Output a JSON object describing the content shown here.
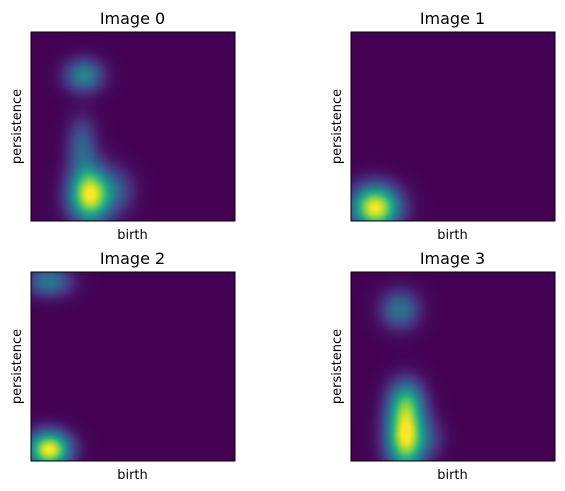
{
  "figure": {
    "colormap": "viridis",
    "background_color": "#440154",
    "peak_color": "#fde725",
    "mid_color": "#21918c"
  },
  "chart_data": [
    {
      "type": "heatmap",
      "title": "Image 0",
      "xlabel": "birth",
      "ylabel": "persistence",
      "xlim": [
        0,
        1
      ],
      "ylim": [
        0,
        1
      ],
      "ticks": "none",
      "grid": false,
      "blobs": [
        {
          "x": 0.29,
          "y": 0.14,
          "sx": 0.07,
          "sy": 0.1,
          "intensity": 1.0
        },
        {
          "x": 0.25,
          "y": 0.4,
          "sx": 0.05,
          "sy": 0.1,
          "intensity": 0.3
        },
        {
          "x": 0.26,
          "y": 0.77,
          "sx": 0.065,
          "sy": 0.06,
          "intensity": 0.45
        },
        {
          "x": 0.43,
          "y": 0.16,
          "sx": 0.06,
          "sy": 0.08,
          "intensity": 0.2
        }
      ]
    },
    {
      "type": "heatmap",
      "title": "Image 1",
      "xlabel": "birth",
      "ylabel": "persistence",
      "xlim": [
        0,
        1
      ],
      "ylim": [
        0,
        1
      ],
      "ticks": "none",
      "grid": false,
      "blobs": [
        {
          "x": 0.12,
          "y": 0.07,
          "sx": 0.08,
          "sy": 0.08,
          "intensity": 1.0
        }
      ]
    },
    {
      "type": "heatmap",
      "title": "Image 2",
      "xlabel": "birth",
      "ylabel": "persistence",
      "xlim": [
        0,
        1
      ],
      "ylim": [
        0,
        1
      ],
      "ticks": "none",
      "grid": false,
      "blobs": [
        {
          "x": 0.09,
          "y": 0.06,
          "sx": 0.07,
          "sy": 0.065,
          "intensity": 1.0
        },
        {
          "x": 0.09,
          "y": 0.95,
          "sx": 0.075,
          "sy": 0.055,
          "intensity": 0.4
        }
      ]
    },
    {
      "type": "heatmap",
      "title": "Image 3",
      "xlabel": "birth",
      "ylabel": "persistence",
      "xlim": [
        0,
        1
      ],
      "ylim": [
        0,
        1
      ],
      "ticks": "none",
      "grid": false,
      "blobs": [
        {
          "x": 0.27,
          "y": 0.13,
          "sx": 0.065,
          "sy": 0.12,
          "intensity": 1.0
        },
        {
          "x": 0.27,
          "y": 0.32,
          "sx": 0.06,
          "sy": 0.08,
          "intensity": 0.45
        },
        {
          "x": 0.24,
          "y": 0.8,
          "sx": 0.065,
          "sy": 0.07,
          "intensity": 0.38
        },
        {
          "x": 0.4,
          "y": 0.12,
          "sx": 0.05,
          "sy": 0.07,
          "intensity": 0.12
        }
      ]
    }
  ]
}
